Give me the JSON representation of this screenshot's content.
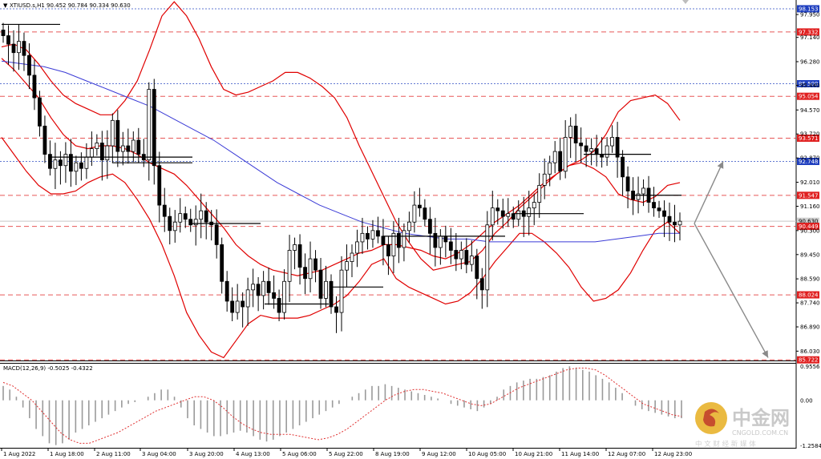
{
  "header": {
    "symbol_line": "XTIUSD.s,H1  90.452 90.784 90.334 90.630",
    "dropdown_icon": "triangle-down-icon"
  },
  "macd": {
    "label": "MACD(12,26,9) -0.5025 -0.4322",
    "ticks": [
      "0.9556",
      "0.00",
      "-1.2584"
    ]
  },
  "watermark": {
    "brand": "中金网",
    "url": "CNGOLD.COM.CN",
    "sub": "中 文 财 经 新 媒 体"
  },
  "chart_data": {
    "type": "candlestick",
    "price_axis_ticks": [
      "97.950",
      "97.140",
      "96.280",
      "95.440",
      "94.570",
      "93.720",
      "92.870",
      "92.010",
      "91.160",
      "90.300",
      "89.450",
      "88.590",
      "87.740",
      "86.890",
      "86.030"
    ],
    "price_labels": [
      {
        "value": "98.153",
        "color": "#1f3fbf"
      },
      {
        "value": "97.332",
        "color": "#e02020"
      },
      {
        "value": "95.500",
        "color": "#1f3fbf"
      },
      {
        "value": "95.054",
        "color": "#e02020"
      },
      {
        "value": "93.571",
        "color": "#e02020"
      },
      {
        "value": "92.748",
        "color": "#1f3fbf"
      },
      {
        "value": "91.547",
        "color": "#e02020"
      },
      {
        "value": "90.630",
        "color": "#cfcfcf"
      },
      {
        "value": "90.449",
        "color": "#e02020"
      },
      {
        "value": "88.024",
        "color": "#e02020"
      },
      {
        "value": "85.722",
        "color": "#e02020"
      }
    ],
    "x_labels": [
      "1 Aug 2022",
      "1 Aug 18:00",
      "2 Aug 11:00",
      "3 Aug 04:00",
      "3 Aug 20:00",
      "4 Aug 13:00",
      "5 Aug 06:00",
      "5 Aug 22:00",
      "8 Aug 19:00",
      "9 Aug 12:00",
      "10 Aug 05:00",
      "10 Aug 21:00",
      "11 Aug 14:00",
      "12 Aug 07:00",
      "12 Aug 23:00"
    ],
    "ylim": [
      85.7,
      98.35
    ],
    "close_path": [
      [
        97.2,
        96.9,
        96.6,
        97.0,
        96.5,
        95.8,
        95.0,
        94.0,
        93.0,
        92.5,
        92.8,
        92.6,
        93.0,
        92.4,
        92.7,
        92.5,
        92.9,
        93.2,
        93.4,
        92.8,
        93.3,
        94.2,
        93.1,
        93.3,
        93.1,
        93.5,
        93.0,
        92.8,
        95.3,
        92.6,
        91.2,
        90.8,
        90.3,
        90.6,
        90.9,
        90.7,
        90.5,
        90.7,
        91.0,
        90.6,
        90.5,
        89.8,
        88.5,
        87.8,
        87.4,
        87.8,
        87.6,
        88.2,
        88.4,
        88.0,
        88.5,
        88.1,
        87.9,
        87.4,
        88.5,
        89.6,
        89.8,
        89.0,
        88.6,
        89.3,
        88.9,
        87.9,
        88.5,
        87.6,
        87.4,
        88.9,
        89.2,
        89.5,
        89.9,
        90.2,
        90.0,
        90.3,
        90.1,
        89.8,
        89.4,
        90.2,
        89.7,
        90.3,
        90.6,
        91.2,
        91.1,
        90.7,
        90.2,
        89.7,
        90.1,
        89.9,
        89.6,
        89.3,
        89.6,
        89.1,
        89.4,
        88.6,
        88.2,
        90.5,
        91.1,
        91.0,
        90.8,
        90.9,
        90.7,
        91.0,
        90.8,
        91.1,
        91.3,
        91.9,
        92.3,
        92.7,
        93.1,
        92.4,
        93.6,
        94.0,
        93.4,
        93.3,
        93.1,
        93.2,
        93.0,
        92.9,
        93.3,
        93.6,
        92.9,
        92.2,
        91.7,
        91.4,
        91.6,
        91.8,
        91.3,
        91.1,
        91.0,
        90.8,
        90.6,
        90.5,
        90.63
      ]
    ],
    "bollinger": {
      "color": "#e00000",
      "upper": [
        96.8,
        96.9,
        96.7,
        96.2,
        95.6,
        95.1,
        94.8,
        94.6,
        94.4,
        94.4,
        94.9,
        95.6,
        96.7,
        97.9,
        98.4,
        97.9,
        97.1,
        96.1,
        95.3,
        95.1,
        95.2,
        95.4,
        95.6,
        95.9,
        95.9,
        95.7,
        95.4,
        95.0,
        94.3,
        93.3,
        92.4,
        91.5,
        90.6,
        89.9,
        89.3,
        88.9,
        89.0,
        89.1,
        89.2,
        89.6,
        90.2,
        90.6,
        91.1,
        91.5,
        91.9,
        92.3,
        92.6,
        92.8,
        93.1,
        93.7,
        94.5,
        94.9,
        95.0,
        95.1,
        94.8,
        94.2
      ],
      "middle": [
        96.4,
        96.0,
        95.5,
        95.0,
        94.3,
        93.7,
        93.3,
        93.2,
        93.3,
        93.3,
        93.2,
        93.0,
        92.7,
        92.5,
        92.3,
        91.9,
        91.4,
        90.9,
        90.4,
        89.8,
        89.4,
        89.1,
        88.9,
        88.8,
        88.7,
        88.8,
        88.9,
        89.1,
        89.3,
        89.5,
        89.6,
        89.8,
        89.8,
        89.7,
        89.6,
        89.4,
        89.3,
        89.5,
        89.8,
        90.2,
        90.6,
        90.9,
        91.2,
        91.6,
        92.0,
        92.3,
        92.6,
        92.7,
        92.5,
        92.2,
        91.6,
        91.4,
        91.3,
        91.5,
        91.9,
        92.0
      ],
      "lower": [
        93.6,
        93.0,
        92.4,
        91.9,
        91.6,
        91.6,
        91.7,
        92.0,
        92.2,
        92.3,
        92.0,
        91.4,
        90.7,
        89.8,
        88.7,
        87.4,
        86.6,
        86.0,
        85.8,
        86.4,
        87.0,
        87.3,
        87.2,
        87.2,
        87.2,
        87.3,
        87.5,
        87.7,
        88.0,
        88.5,
        89.1,
        89.3,
        88.6,
        88.3,
        88.1,
        87.9,
        87.7,
        87.8,
        88.1,
        88.6,
        89.2,
        89.7,
        90.2,
        90.2,
        89.9,
        89.5,
        89.0,
        88.3,
        87.8,
        87.9,
        88.2,
        88.8,
        89.6,
        90.3,
        90.6,
        90.2
      ]
    },
    "ma_blue": [
      96.3,
      96.2,
      96.1,
      95.9,
      95.6,
      95.3,
      95.0,
      94.7,
      94.3,
      93.9,
      93.5,
      93.0,
      92.5,
      92.0,
      91.6,
      91.2,
      90.9,
      90.6,
      90.4,
      90.2,
      90.1,
      90.0,
      90.0,
      89.9,
      89.9,
      89.9,
      89.9,
      89.9,
      89.9,
      90.0,
      90.1,
      90.2,
      90.2
    ],
    "black_levels": [
      {
        "value": 97.6
      },
      {
        "value": 92.9
      },
      {
        "value": 92.7
      },
      {
        "value": 90.55
      },
      {
        "value": 87.7
      },
      {
        "value": 88.3
      },
      {
        "value": 90.1
      },
      {
        "value": 90.9
      },
      {
        "value": 93.0
      },
      {
        "value": 91.55
      }
    ],
    "projections": [
      {
        "direction": "up",
        "from": 90.55,
        "to": 92.75
      },
      {
        "direction": "down",
        "from": 90.55,
        "to": 85.8
      }
    ],
    "macd_hist": [
      0.4,
      0.3,
      0.1,
      -0.2,
      -0.5,
      -0.8,
      -1.0,
      -1.2,
      -1.25,
      -1.2,
      -1.1,
      -0.9,
      -0.8,
      -0.7,
      -0.6,
      -0.5,
      -0.4,
      -0.3,
      -0.2,
      -0.1,
      -0.05,
      0.0,
      0.1,
      0.2,
      0.3,
      0.3,
      0.1,
      -0.2,
      -0.5,
      -0.7,
      -0.8,
      -0.9,
      -1.0,
      -1.0,
      -0.95,
      -0.9,
      -0.85,
      -0.9,
      -1.0,
      -1.1,
      -1.15,
      -1.1,
      -1.0,
      -0.9,
      -0.8,
      -0.7,
      -0.6,
      -0.5,
      -0.4,
      -0.3,
      -0.2,
      -0.1,
      0.0,
      0.1,
      0.2,
      0.3,
      0.4,
      0.4,
      0.45,
      0.4,
      0.35,
      0.3,
      0.25,
      0.2,
      0.15,
      0.1,
      0.05,
      0.0,
      -0.1,
      -0.15,
      -0.2,
      -0.25,
      -0.3,
      -0.2,
      -0.1,
      0.1,
      0.3,
      0.4,
      0.5,
      0.55,
      0.6,
      0.6,
      0.65,
      0.7,
      0.8,
      0.9,
      0.95,
      0.9,
      0.85,
      0.8,
      0.7,
      0.6,
      0.5,
      0.35,
      0.2,
      0.0,
      -0.15,
      -0.25,
      -0.3,
      -0.35,
      -0.4,
      -0.45,
      -0.5,
      -0.5
    ],
    "macd_signal": [
      0.5,
      0.4,
      0.2,
      0.0,
      -0.3,
      -0.6,
      -0.9,
      -1.1,
      -1.2,
      -1.2,
      -1.1,
      -1.0,
      -0.9,
      -0.75,
      -0.6,
      -0.45,
      -0.3,
      -0.2,
      -0.1,
      0.0,
      0.1,
      0.1,
      0.0,
      -0.2,
      -0.45,
      -0.65,
      -0.8,
      -0.9,
      -0.95,
      -0.95,
      -0.95,
      -1.0,
      -1.05,
      -1.1,
      -1.05,
      -0.95,
      -0.8,
      -0.6,
      -0.4,
      -0.2,
      0.0,
      0.15,
      0.25,
      0.3,
      0.3,
      0.25,
      0.2,
      0.1,
      0.0,
      -0.1,
      -0.15,
      -0.1,
      0.05,
      0.2,
      0.35,
      0.45,
      0.55,
      0.65,
      0.75,
      0.85,
      0.9,
      0.9,
      0.85,
      0.7,
      0.5,
      0.3,
      0.1,
      -0.1,
      -0.2,
      -0.3,
      -0.4,
      -0.45
    ]
  }
}
